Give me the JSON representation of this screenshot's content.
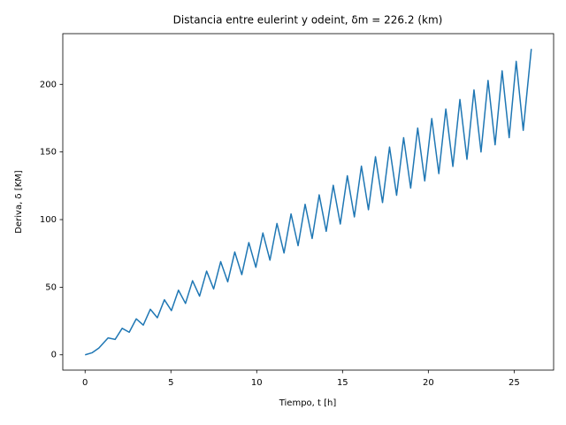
{
  "chart_data": {
    "type": "line",
    "title": "Distancia entre eulerint y odeint, δm = 226.2 (km)",
    "xlabel": "Tiempo, t [h]",
    "ylabel": "Deriva, δ [KM]",
    "color": "#1f77b4",
    "x": [
      0,
      0.4,
      0.8,
      1.34,
      1.75,
      2.16,
      2.57,
      2.98,
      3.39,
      3.8,
      4.21,
      4.62,
      5.03,
      5.44,
      5.85,
      6.26,
      6.67,
      7.08,
      7.49,
      7.9,
      8.31,
      8.72,
      9.13,
      9.54,
      9.95,
      10.36,
      10.77,
      11.18,
      11.59,
      12.0,
      12.41,
      12.82,
      13.23,
      13.64,
      14.05,
      14.46,
      14.87,
      15.28,
      15.69,
      16.1,
      16.51,
      16.92,
      17.33,
      17.74,
      18.15,
      18.56,
      18.97,
      19.38,
      19.79,
      20.2,
      20.61,
      21.02,
      21.43,
      21.84,
      22.25,
      22.66,
      23.07,
      23.48,
      23.89,
      24.3,
      24.71,
      25.12,
      25.53,
      26.0
    ],
    "values": [
      0,
      1.5,
      5,
      12.5,
      11.4,
      19.6,
      16.7,
      26.6,
      22.0,
      33.7,
      27.4,
      40.7,
      32.7,
      47.8,
      38.0,
      54.8,
      43.4,
      61.9,
      48.7,
      68.9,
      54.0,
      76.0,
      59.3,
      83.0,
      64.7,
      90.1,
      70.0,
      97.1,
      75.3,
      104.2,
      80.7,
      111.3,
      86.0,
      118.3,
      91.3,
      125.4,
      96.7,
      132.4,
      102.0,
      139.5,
      107.3,
      146.5,
      112.6,
      153.6,
      118.0,
      160.6,
      123.3,
      167.7,
      128.6,
      174.7,
      134.0,
      181.8,
      139.3,
      188.8,
      144.6,
      195.9,
      150.0,
      202.9,
      155.3,
      210.0,
      160.6,
      217.0,
      166.0,
      226.2
    ],
    "xlim": [
      -1.3,
      27.3
    ],
    "ylim": [
      -11.3,
      237.5
    ],
    "xticks": [
      0,
      5,
      10,
      15,
      20,
      25
    ],
    "yticks": [
      0,
      50,
      100,
      150,
      200
    ]
  }
}
